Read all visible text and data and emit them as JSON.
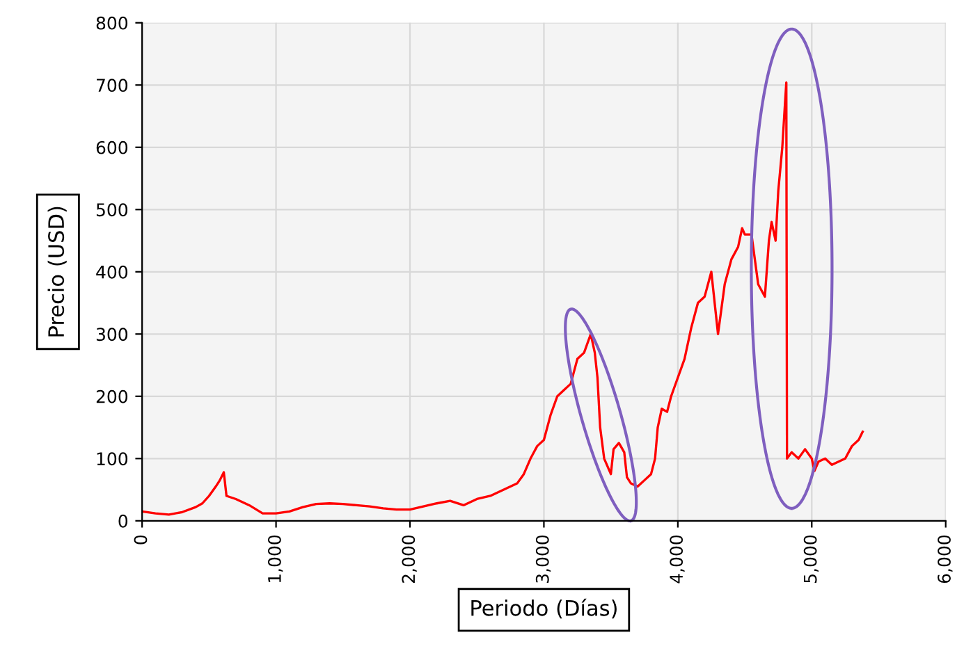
{
  "chart_data": {
    "type": "line",
    "xlabel": "Periodo (Días)",
    "ylabel": "Precio (USD)",
    "xlim": [
      0,
      6000
    ],
    "ylim": [
      0,
      800
    ],
    "xticks": [
      0,
      {
        "value": 1000,
        "label": "1,000"
      },
      {
        "value": 2000,
        "label": "2,000"
      },
      {
        "value": 3000,
        "label": "3,000"
      },
      {
        "value": 4000,
        "label": "4,000"
      },
      {
        "value": 5000,
        "label": "5,000"
      },
      {
        "value": 6000,
        "label": "6,000"
      }
    ],
    "yticks": [
      0,
      100,
      200,
      300,
      400,
      500,
      600,
      700,
      800
    ],
    "grid": true,
    "legend": false,
    "marker": "none",
    "line_style": "solid",
    "series": [
      {
        "color": "#ff0000",
        "x": [
          0,
          100,
          200,
          300,
          400,
          450,
          500,
          550,
          580,
          610,
          630,
          700,
          800,
          900,
          1000,
          1100,
          1200,
          1300,
          1400,
          1500,
          1600,
          1700,
          1800,
          1900,
          2000,
          2100,
          2200,
          2300,
          2400,
          2500,
          2600,
          2700,
          2800,
          2850,
          2900,
          2950,
          3000,
          3050,
          3100,
          3150,
          3200,
          3250,
          3300,
          3350,
          3380,
          3400,
          3420,
          3450,
          3500,
          3520,
          3560,
          3600,
          3620,
          3650,
          3700,
          3750,
          3800,
          3830,
          3850,
          3880,
          3920,
          3950,
          4000,
          4050,
          4100,
          4150,
          4200,
          4250,
          4280,
          4300,
          4350,
          4400,
          4450,
          4480,
          4500,
          4550,
          4600,
          4650,
          4680,
          4700,
          4730,
          4750,
          4780,
          4800,
          4810,
          4815,
          4850,
          4900,
          4950,
          5000,
          5020,
          5050,
          5100,
          5150,
          5200,
          5250,
          5300,
          5350,
          5380
        ],
        "values": [
          15,
          12,
          10,
          14,
          22,
          28,
          40,
          55,
          65,
          78,
          40,
          35,
          25,
          12,
          12,
          15,
          22,
          27,
          28,
          27,
          25,
          23,
          20,
          18,
          18,
          23,
          28,
          32,
          25,
          35,
          40,
          50,
          60,
          75,
          100,
          120,
          130,
          170,
          200,
          210,
          220,
          260,
          270,
          300,
          270,
          230,
          150,
          100,
          75,
          115,
          125,
          110,
          70,
          60,
          55,
          65,
          75,
          100,
          150,
          180,
          175,
          200,
          230,
          260,
          310,
          350,
          360,
          400,
          340,
          300,
          380,
          420,
          440,
          470,
          460,
          460,
          380,
          360,
          450,
          480,
          450,
          530,
          600,
          670,
          704,
          100,
          110,
          100,
          115,
          100,
          80,
          95,
          100,
          90,
          95,
          100,
          120,
          130,
          143
        ]
      }
    ]
  }
}
